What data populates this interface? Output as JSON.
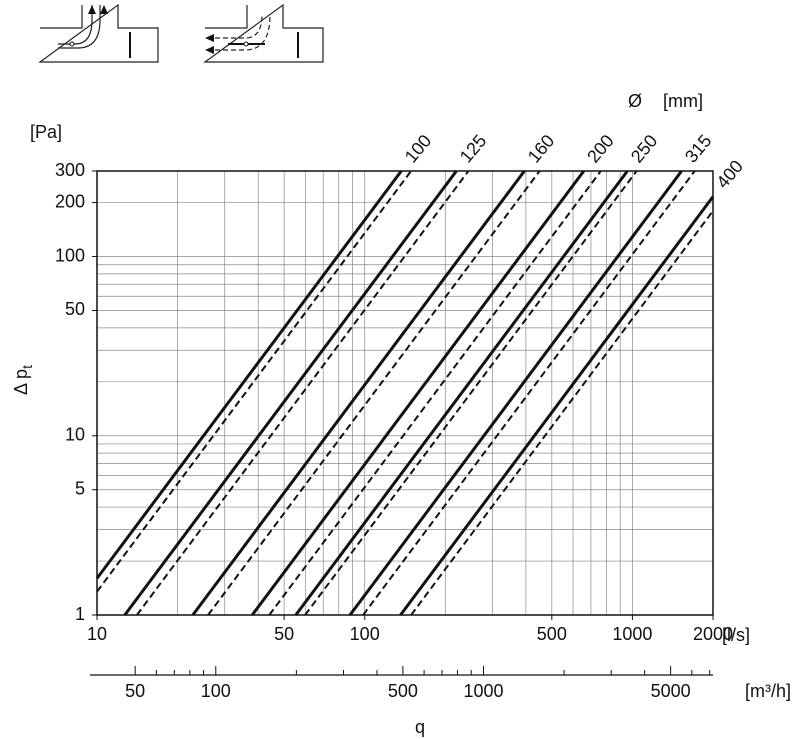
{
  "chart_data": {
    "type": "line",
    "y_label": {
      "main": "Δ p",
      "sub": "t"
    },
    "y_unit": "[Pa]",
    "x_unit": "[l/s]",
    "x2_unit": "[m³/h]",
    "x_label": "q",
    "diameter_symbol": "Ø",
    "diameter_unit": "[mm]",
    "log_x": true,
    "log_y": true,
    "grid": true,
    "xlim": [
      10,
      2000
    ],
    "xticks": [
      10,
      50,
      100,
      500,
      1000,
      2000
    ],
    "xminor": [
      20,
      30,
      40,
      60,
      70,
      80,
      90,
      200,
      300,
      400,
      600,
      700,
      800,
      900
    ],
    "ylim": [
      1,
      300
    ],
    "yticks": [
      1,
      5,
      10,
      50,
      100,
      200,
      300
    ],
    "yminor": [
      2,
      3,
      4,
      6,
      7,
      8,
      9,
      20,
      30,
      40,
      60,
      70,
      80,
      90
    ],
    "x2lim": [
      36,
      7200
    ],
    "x2ticks": [
      50,
      100,
      500,
      1000,
      5000
    ],
    "x2minor": [
      60,
      70,
      80,
      90,
      200,
      300,
      400,
      600,
      700,
      800,
      900,
      2000,
      3000,
      4000,
      6000,
      7000
    ],
    "series": [
      {
        "name": "100",
        "color": "#111111",
        "solid": {
          "x": [
            10,
            137
          ],
          "values": [
            1.6,
            300
          ]
        },
        "dashed": {
          "x": [
            10,
            149
          ],
          "values": [
            1.35,
            300
          ]
        }
      },
      {
        "name": "125",
        "color": "#111111",
        "solid": {
          "x": [
            12.7,
            220
          ],
          "values": [
            1,
            300
          ]
        },
        "dashed": {
          "x": [
            14.1,
            244
          ],
          "values": [
            1,
            300
          ]
        }
      },
      {
        "name": "160",
        "color": "#111111",
        "solid": {
          "x": [
            22.8,
            395
          ],
          "values": [
            1,
            300
          ]
        },
        "dashed": {
          "x": [
            26,
            450
          ],
          "values": [
            1,
            300
          ]
        }
      },
      {
        "name": "200",
        "color": "#111111",
        "solid": {
          "x": [
            38,
            658
          ],
          "values": [
            1,
            300
          ]
        },
        "dashed": {
          "x": [
            44,
            762
          ],
          "values": [
            1,
            300
          ]
        }
      },
      {
        "name": "250",
        "color": "#111111",
        "solid": {
          "x": [
            55.3,
            958
          ],
          "values": [
            1,
            300
          ]
        },
        "dashed": {
          "x": [
            59.9,
            1037
          ],
          "values": [
            1,
            300
          ]
        }
      },
      {
        "name": "315",
        "color": "#111111",
        "solid": {
          "x": [
            88.1,
            1526
          ],
          "values": [
            1,
            300
          ]
        },
        "dashed": {
          "x": [
            98.6,
            1708
          ],
          "values": [
            1,
            300
          ]
        }
      },
      {
        "name": "400",
        "color": "#111111",
        "solid": {
          "x": [
            136,
            2000
          ],
          "values": [
            1,
            216
          ]
        },
        "dashed": {
          "x": [
            149,
            2000
          ],
          "values": [
            1,
            180
          ]
        }
      }
    ]
  }
}
